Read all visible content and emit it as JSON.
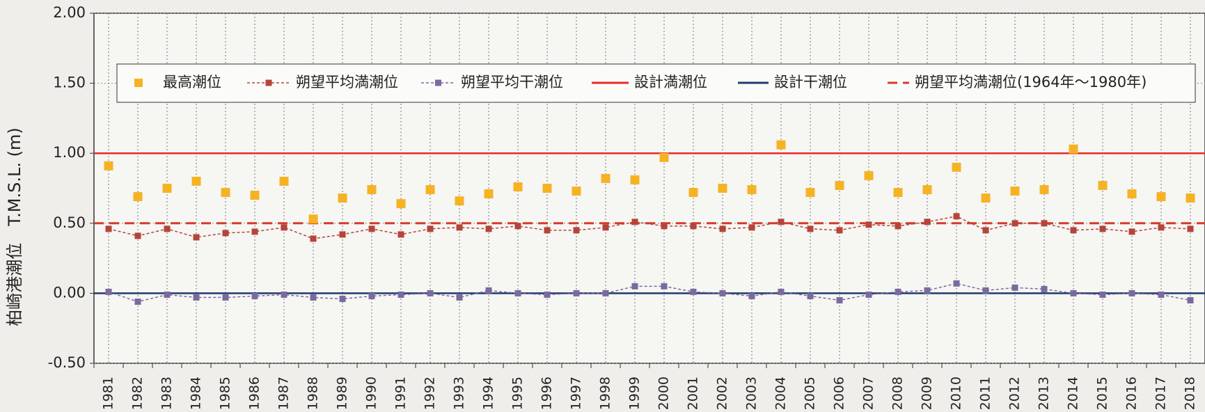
{
  "chart_data": {
    "type": "line",
    "ylabel": "柏崎港潮位　T.M.S.L. (m)",
    "categories": [
      "1981",
      "1982",
      "1983",
      "1984",
      "1985",
      "1986",
      "1987",
      "1988",
      "1989",
      "1990",
      "1991",
      "1992",
      "1993",
      "1994",
      "1995",
      "1996",
      "1997",
      "1998",
      "1999",
      "2000",
      "2001",
      "2002",
      "2003",
      "2004",
      "2005",
      "2006",
      "2007",
      "2008",
      "2009",
      "2010",
      "2011",
      "2012",
      "2013",
      "2014",
      "2015",
      "2016",
      "2017",
      "2018"
    ],
    "series": [
      {
        "name": "最高潮位",
        "color": "#f5b324",
        "style": "markers",
        "values": [
          0.91,
          0.69,
          0.75,
          0.8,
          0.72,
          0.7,
          0.8,
          0.53,
          0.68,
          0.74,
          0.64,
          0.74,
          0.66,
          0.71,
          0.76,
          0.75,
          0.73,
          0.82,
          0.81,
          0.97,
          0.72,
          0.75,
          0.74,
          1.06,
          0.72,
          0.77,
          0.84,
          0.72,
          0.74,
          0.9,
          0.68,
          0.73,
          0.74,
          1.03,
          0.77,
          0.71,
          0.69,
          0.68
        ]
      },
      {
        "name": "朔望平均満潮位",
        "color": "#b5443a",
        "style": "dashed-markers",
        "values": [
          0.46,
          0.41,
          0.46,
          0.4,
          0.43,
          0.44,
          0.47,
          0.39,
          0.42,
          0.46,
          0.42,
          0.46,
          0.47,
          0.46,
          0.48,
          0.45,
          0.45,
          0.47,
          0.51,
          0.48,
          0.48,
          0.46,
          0.47,
          0.51,
          0.46,
          0.45,
          0.49,
          0.48,
          0.51,
          0.55,
          0.45,
          0.5,
          0.5,
          0.45,
          0.46,
          0.44,
          0.47,
          0.46
        ]
      },
      {
        "name": "朔望平均干潮位",
        "color": "#7a6aa0",
        "style": "dashed-markers",
        "values": [
          0.01,
          -0.06,
          -0.01,
          -0.03,
          -0.03,
          -0.02,
          -0.01,
          -0.03,
          -0.04,
          -0.02,
          -0.01,
          0.0,
          -0.03,
          0.02,
          0.0,
          -0.01,
          0.0,
          0.0,
          0.05,
          0.05,
          0.01,
          0.0,
          -0.02,
          0.01,
          -0.02,
          -0.05,
          -0.01,
          0.01,
          0.02,
          0.07,
          0.02,
          0.04,
          0.03,
          0.0,
          -0.01,
          0.0,
          -0.01,
          -0.05
        ]
      }
    ],
    "reference_lines": [
      {
        "name": "設計満潮位",
        "color": "#e8282a",
        "value": 1,
        "dashed": false
      },
      {
        "name": "設計干潮位",
        "color": "#1f3a6e",
        "value": 0,
        "dashed": false
      },
      {
        "name": "朔望平均満潮位(1964年～1980年)",
        "color": "#d63a2a",
        "value": 0.5,
        "dashed": true
      }
    ],
    "ylim": [
      -0.5,
      2
    ],
    "yticks": [
      {
        "value": -0.5,
        "label": "-0.50"
      },
      {
        "value": 0,
        "label": "0.00"
      },
      {
        "value": 0.5,
        "label": "0.50"
      },
      {
        "value": 1,
        "label": "1.00"
      },
      {
        "value": 1.5,
        "label": "1.50"
      },
      {
        "value": 2,
        "label": "2.00"
      }
    ],
    "grid": true
  }
}
